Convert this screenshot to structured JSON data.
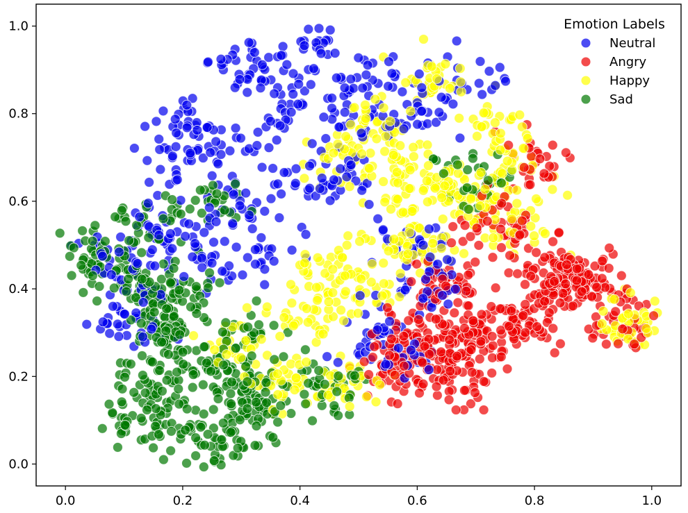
{
  "chart_data": {
    "type": "scatter",
    "title": "",
    "xlabel": "",
    "ylabel": "",
    "xlim": [
      -0.05,
      1.05
    ],
    "ylim": [
      -0.05,
      1.05
    ],
    "xticks": [
      0.0,
      0.2,
      0.4,
      0.6,
      0.8,
      1.0
    ],
    "yticks": [
      0.0,
      0.2,
      0.4,
      0.6,
      0.8,
      1.0
    ],
    "xtick_labels": [
      "0.0",
      "0.2",
      "0.4",
      "0.6",
      "0.8",
      "1.0"
    ],
    "ytick_labels": [
      "0.0",
      "0.2",
      "0.4",
      "0.6",
      "0.8",
      "1.0"
    ],
    "grid": false,
    "legend": {
      "title": "Emotion Labels",
      "placement": "top-right"
    },
    "marker_opacity": 0.7,
    "points_per_series_estimated": 600,
    "series": [
      {
        "name": "Neutral",
        "color": "#0000ee",
        "cluster_centers": [
          [
            0.42,
            0.95
          ],
          [
            0.37,
            0.88
          ],
          [
            0.3,
            0.9
          ],
          [
            0.2,
            0.78
          ],
          [
            0.27,
            0.73
          ],
          [
            0.37,
            0.78
          ],
          [
            0.4,
            0.64
          ],
          [
            0.3,
            0.6
          ],
          [
            0.22,
            0.55
          ],
          [
            0.15,
            0.52
          ],
          [
            0.06,
            0.47
          ],
          [
            0.13,
            0.42
          ],
          [
            0.26,
            0.45
          ],
          [
            0.35,
            0.5
          ],
          [
            0.47,
            0.65
          ],
          [
            0.48,
            0.78
          ],
          [
            0.52,
            0.88
          ],
          [
            0.6,
            0.82
          ],
          [
            0.68,
            0.88
          ],
          [
            0.6,
            0.5
          ],
          [
            0.62,
            0.4
          ],
          [
            0.52,
            0.3
          ],
          [
            0.57,
            0.25
          ],
          [
            0.1,
            0.32
          ],
          [
            0.19,
            0.7
          ]
        ]
      },
      {
        "name": "Angry",
        "color": "#ee0000",
        "cluster_centers": [
          [
            0.9,
            0.4
          ],
          [
            0.95,
            0.32
          ],
          [
            0.82,
            0.4
          ],
          [
            0.78,
            0.32
          ],
          [
            0.72,
            0.3
          ],
          [
            0.66,
            0.28
          ],
          [
            0.63,
            0.22
          ],
          [
            0.68,
            0.2
          ],
          [
            0.6,
            0.3
          ],
          [
            0.65,
            0.4
          ],
          [
            0.86,
            0.44
          ],
          [
            0.74,
            0.54
          ],
          [
            0.8,
            0.68
          ],
          [
            0.56,
            0.22
          ]
        ]
      },
      {
        "name": "Happy",
        "color": "#ffff00",
        "cluster_centers": [
          [
            0.62,
            0.88
          ],
          [
            0.72,
            0.78
          ],
          [
            0.78,
            0.68
          ],
          [
            0.64,
            0.64
          ],
          [
            0.58,
            0.6
          ],
          [
            0.72,
            0.62
          ],
          [
            0.76,
            0.55
          ],
          [
            0.52,
            0.78
          ],
          [
            0.55,
            0.7
          ],
          [
            0.44,
            0.45
          ],
          [
            0.5,
            0.4
          ],
          [
            0.46,
            0.7
          ],
          [
            0.42,
            0.35
          ],
          [
            0.6,
            0.5
          ],
          [
            0.48,
            0.18
          ],
          [
            0.97,
            0.32
          ],
          [
            0.3,
            0.28
          ],
          [
            0.38,
            0.18
          ]
        ]
      },
      {
        "name": "Sad",
        "color": "#007700",
        "cluster_centers": [
          [
            0.05,
            0.46
          ],
          [
            0.1,
            0.42
          ],
          [
            0.15,
            0.36
          ],
          [
            0.18,
            0.3
          ],
          [
            0.14,
            0.22
          ],
          [
            0.18,
            0.15
          ],
          [
            0.2,
            0.06
          ],
          [
            0.26,
            0.04
          ],
          [
            0.3,
            0.1
          ],
          [
            0.3,
            0.2
          ],
          [
            0.25,
            0.22
          ],
          [
            0.33,
            0.15
          ],
          [
            0.12,
            0.1
          ],
          [
            0.2,
            0.38
          ],
          [
            0.3,
            0.3
          ],
          [
            0.45,
            0.18
          ],
          [
            0.7,
            0.65
          ],
          [
            0.24,
            0.6
          ],
          [
            0.14,
            0.55
          ]
        ]
      }
    ]
  }
}
